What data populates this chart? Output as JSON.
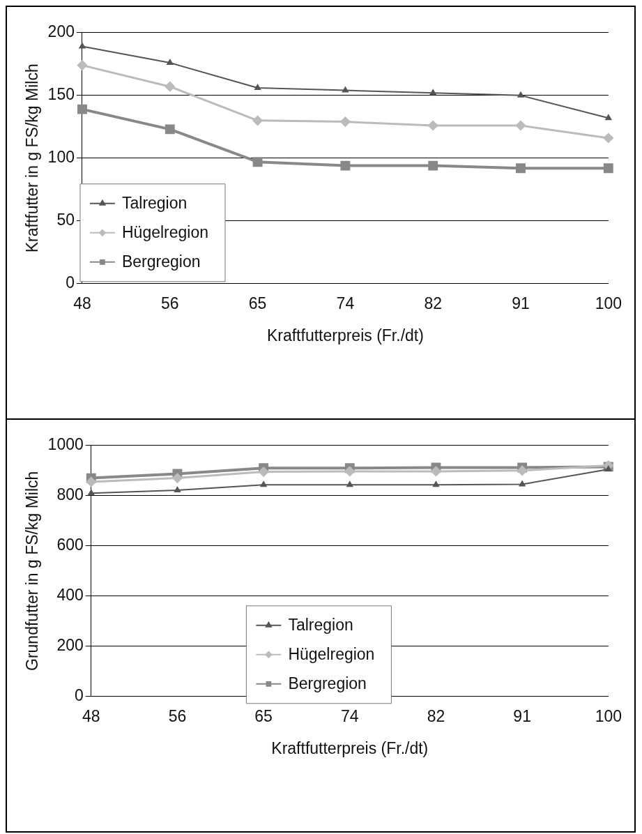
{
  "chart_data": [
    {
      "type": "line",
      "categories": [
        "48",
        "56",
        "65",
        "74",
        "82",
        "91",
        "100"
      ],
      "xlabel": "Kraftfutterpreis (Fr./dt)",
      "ylabel": "Kraftfutter in g FS/kg Milch",
      "ylim": [
        0,
        200
      ],
      "yticks": [
        0,
        50,
        100,
        150,
        200
      ],
      "grid": "y",
      "legend": "bottom left",
      "series": [
        {
          "name": "Talregion",
          "color": "#555555",
          "marker": "triangle",
          "values": [
            189,
            176,
            156,
            154,
            152,
            150,
            132
          ]
        },
        {
          "name": "Hügelregion",
          "color": "#bbbbbb",
          "marker": "diamond",
          "values": [
            174,
            157,
            130,
            129,
            126,
            126,
            116
          ]
        },
        {
          "name": "Bergregion",
          "color": "#888888",
          "marker": "square",
          "values": [
            139,
            123,
            97,
            94,
            94,
            92,
            92
          ]
        }
      ]
    },
    {
      "type": "line",
      "categories": [
        "48",
        "56",
        "65",
        "74",
        "82",
        "91",
        "100"
      ],
      "xlabel": "Kraftfutterpreis (Fr./dt)",
      "ylabel": "Grundfutter in g FS/kg Milch",
      "ylim": [
        0,
        1000
      ],
      "yticks": [
        0,
        200,
        400,
        600,
        800,
        1000
      ],
      "grid": "y",
      "legend": "bottom",
      "series": [
        {
          "name": "Talregion",
          "color": "#555555",
          "marker": "triangle",
          "values": [
            810,
            822,
            843,
            843,
            843,
            845,
            905
          ]
        },
        {
          "name": "Hügelregion",
          "color": "#bbbbbb",
          "marker": "diamond",
          "values": [
            855,
            870,
            895,
            897,
            897,
            900,
            920
          ]
        },
        {
          "name": "Bergregion",
          "color": "#888888",
          "marker": "square",
          "values": [
            870,
            887,
            910,
            910,
            912,
            912,
            915
          ]
        }
      ]
    }
  ]
}
